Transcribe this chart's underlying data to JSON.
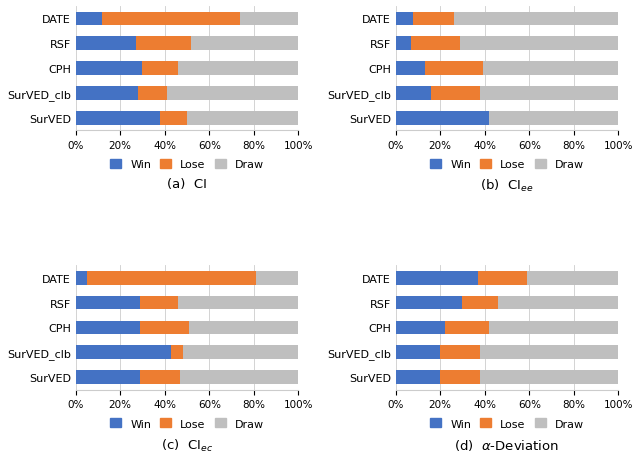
{
  "subplots": [
    {
      "label": "(a)  CI",
      "categories": [
        "DATE",
        "RSF",
        "CPH",
        "SurVED_clb",
        "SurVED"
      ],
      "win": [
        12,
        27,
        30,
        28,
        38
      ],
      "lose": [
        62,
        25,
        16,
        13,
        12
      ],
      "draw": [
        26,
        48,
        54,
        59,
        50
      ]
    },
    {
      "label": "(b)  CI$_{ee}$",
      "categories": [
        "DATE",
        "RSF",
        "CPH",
        "SurVED_clb",
        "SurVED"
      ],
      "win": [
        8,
        7,
        13,
        16,
        42
      ],
      "lose": [
        18,
        22,
        26,
        22,
        0
      ],
      "draw": [
        74,
        71,
        61,
        62,
        58
      ]
    },
    {
      "label": "(c)  CI$_{ec}$",
      "categories": [
        "DATE",
        "RSF",
        "CPH",
        "SurVED_clb",
        "SurVED"
      ],
      "win": [
        5,
        29,
        29,
        43,
        29
      ],
      "lose": [
        76,
        17,
        22,
        5,
        18
      ],
      "draw": [
        19,
        54,
        49,
        52,
        53
      ]
    },
    {
      "label": "(d)  $\\alpha$-Deviation",
      "categories": [
        "DATE",
        "RSF",
        "CPH",
        "SurVED_clb",
        "SurVED"
      ],
      "win": [
        37,
        30,
        22,
        20,
        20
      ],
      "lose": [
        22,
        16,
        20,
        18,
        18
      ],
      "draw": [
        41,
        54,
        58,
        62,
        62
      ]
    }
  ],
  "win_color": "#4472C4",
  "lose_color": "#ED7D31",
  "draw_color": "#BFBFBF",
  "bar_height": 0.55,
  "figsize": [
    6.4,
    4.77
  ],
  "dpi": 100
}
